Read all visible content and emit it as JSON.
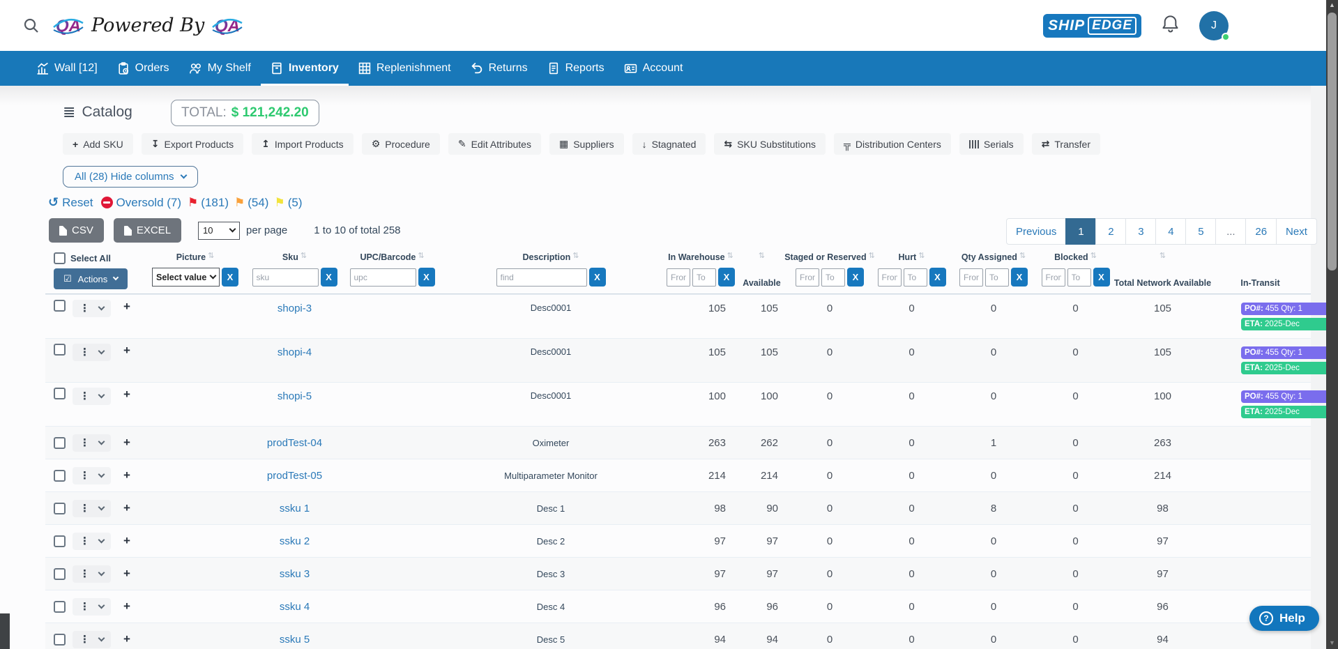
{
  "topbar": {
    "powered_by": "Powered By",
    "brand_ship": "SHIP",
    "brand_edge": "EDGE",
    "avatar_initial": "J"
  },
  "nav": {
    "items": [
      {
        "label": "Wall [12]",
        "active": false
      },
      {
        "label": "Orders",
        "active": false
      },
      {
        "label": "My Shelf",
        "active": false
      },
      {
        "label": "Inventory",
        "active": true
      },
      {
        "label": "Replenishment",
        "active": false
      },
      {
        "label": "Returns",
        "active": false
      },
      {
        "label": "Reports",
        "active": false
      },
      {
        "label": "Account",
        "active": false
      }
    ]
  },
  "catalog": {
    "title": "Catalog",
    "total_label": "TOTAL:",
    "total_value": "$ 121,242.20"
  },
  "action_buttons": [
    {
      "name": "add-sku-button",
      "label": "Add SKU",
      "icon": "+",
      "icon_name": "plus-icon"
    },
    {
      "name": "export-products-button",
      "label": "Export Products",
      "icon": "↧",
      "icon_name": "download-icon"
    },
    {
      "name": "import-products-button",
      "label": "Import Products",
      "icon": "↥",
      "icon_name": "upload-icon"
    },
    {
      "name": "procedure-button",
      "label": "Procedure",
      "icon": "⚙",
      "icon_name": "gear-icon"
    },
    {
      "name": "edit-attributes-button",
      "label": "Edit Attributes",
      "icon": "✎",
      "icon_name": "edit-icon"
    },
    {
      "name": "suppliers-button",
      "label": "Suppliers",
      "icon": "▦",
      "icon_name": "building-icon"
    },
    {
      "name": "stagnated-button",
      "label": "Stagnated",
      "icon": "↓",
      "icon_name": "arrow-down-icon"
    },
    {
      "name": "sku-substitutions-button",
      "label": "SKU Substitutions",
      "icon": "⇆",
      "icon_name": "substitute-icon"
    },
    {
      "name": "distribution-centers-button",
      "label": "Distribution Centers",
      "icon": "╦",
      "icon_name": "sitemap-icon"
    },
    {
      "name": "serials-button",
      "label": "Serials",
      "icon": "",
      "icon_name": "barcode-icon"
    },
    {
      "name": "transfer-button",
      "label": "Transfer",
      "icon": "⇄",
      "icon_name": "transfer-icon"
    }
  ],
  "columns_toggle": {
    "label": "All (28)  Hide columns"
  },
  "filter_bar": {
    "reset_label": "Reset",
    "oversold_label": "Oversold (7)",
    "flags": [
      {
        "name": "red-flag-filter",
        "color": "#e8212e",
        "count": "(181)"
      },
      {
        "name": "orange-flag-filter",
        "color": "#f9a13a",
        "count": "(54)"
      },
      {
        "name": "yellow-flag-filter",
        "color": "#f2e33b",
        "count": "(5)"
      }
    ]
  },
  "toolbar": {
    "csv_label": "CSV",
    "excel_label": "EXCEL",
    "per_page_value": "10",
    "per_page_label": "per page",
    "range_text": "1 to 10 of total 258"
  },
  "pagination": {
    "items": [
      "Previous",
      "1",
      "2",
      "3",
      "4",
      "5",
      "...",
      "26",
      "Next"
    ],
    "active_index": 1
  },
  "table": {
    "select_all_label": "Select All",
    "actions_label": "Actions",
    "headers": {
      "picture": "Picture",
      "sku": "Sku",
      "upc": "UPC/Barcode",
      "description": "Description",
      "in_warehouse": "In Warehouse",
      "available": "Available",
      "staged": "Staged or Reserved",
      "hurt": "Hurt",
      "qty_assigned": "Qty Assigned",
      "blocked": "Blocked",
      "total_network": "Total Network Available",
      "in_transit": "In-Transit"
    },
    "filters": {
      "picture_select": "Select value",
      "sku_placeholder": "sku",
      "upc_placeholder": "upc",
      "description_placeholder": "find",
      "from_placeholder": "From",
      "to_placeholder": "To",
      "clear_label": "X"
    },
    "rows": [
      {
        "sku": "shopi-3",
        "description": "Desc0001",
        "in_warehouse": "105",
        "available": "105",
        "staged": "0",
        "hurt": "0",
        "qty_assigned": "0",
        "blocked": "0",
        "total_network": "105",
        "in_transit": {
          "po_prefix": "PO#:",
          "po_text": "455 Qty: 1",
          "eta_prefix": "ETA:",
          "eta_text": "2025-Dec"
        }
      },
      {
        "sku": "shopi-4",
        "description": "Desc0001",
        "in_warehouse": "105",
        "available": "105",
        "staged": "0",
        "hurt": "0",
        "qty_assigned": "0",
        "blocked": "0",
        "total_network": "105",
        "in_transit": {
          "po_prefix": "PO#:",
          "po_text": "455 Qty: 1",
          "eta_prefix": "ETA:",
          "eta_text": "2025-Dec"
        }
      },
      {
        "sku": "shopi-5",
        "description": "Desc0001",
        "in_warehouse": "100",
        "available": "100",
        "staged": "0",
        "hurt": "0",
        "qty_assigned": "0",
        "blocked": "0",
        "total_network": "100",
        "in_transit": {
          "po_prefix": "PO#:",
          "po_text": "455 Qty: 1",
          "eta_prefix": "ETA:",
          "eta_text": "2025-Dec"
        }
      },
      {
        "sku": "prodTest-04",
        "description": "Oximeter",
        "in_warehouse": "263",
        "available": "262",
        "staged": "0",
        "hurt": "0",
        "qty_assigned": "1",
        "blocked": "0",
        "total_network": "263",
        "in_transit": null
      },
      {
        "sku": "prodTest-05",
        "description": "Multiparameter Monitor",
        "in_warehouse": "214",
        "available": "214",
        "staged": "0",
        "hurt": "0",
        "qty_assigned": "0",
        "blocked": "0",
        "total_network": "214",
        "in_transit": null
      },
      {
        "sku": "ssku 1",
        "description": "Desc 1",
        "in_warehouse": "98",
        "available": "90",
        "staged": "0",
        "hurt": "0",
        "qty_assigned": "8",
        "blocked": "0",
        "total_network": "98",
        "in_transit": null
      },
      {
        "sku": "ssku 2",
        "description": "Desc 2",
        "in_warehouse": "97",
        "available": "97",
        "staged": "0",
        "hurt": "0",
        "qty_assigned": "0",
        "blocked": "0",
        "total_network": "97",
        "in_transit": null
      },
      {
        "sku": "ssku 3",
        "description": "Desc 3",
        "in_warehouse": "97",
        "available": "97",
        "staged": "0",
        "hurt": "0",
        "qty_assigned": "0",
        "blocked": "0",
        "total_network": "97",
        "in_transit": null
      },
      {
        "sku": "ssku 4",
        "description": "Desc 4",
        "in_warehouse": "96",
        "available": "96",
        "staged": "0",
        "hurt": "0",
        "qty_assigned": "0",
        "blocked": "0",
        "total_network": "96",
        "in_transit": null
      },
      {
        "sku": "ssku 5",
        "description": "Desc 5",
        "in_warehouse": "94",
        "available": "94",
        "staged": "0",
        "hurt": "0",
        "qty_assigned": "0",
        "blocked": "0",
        "total_network": "94",
        "in_transit": null
      }
    ]
  },
  "help": {
    "label": "Help",
    "icon": "?"
  },
  "glyphs": {
    "catalog": "≣",
    "reset": "↺",
    "flag": "⚑",
    "sort": "⇅",
    "kebab": "⋮",
    "plus": "+",
    "actions_check": "☑",
    "scroll_up": "▲",
    "scroll_down": "▼"
  },
  "colors": {
    "nav_blue": "#1878b9",
    "brand_blue": "#1778be",
    "total_green": "#2dc96f",
    "badge_purple": "#7a6ded",
    "badge_green": "#2fcb8e",
    "pagination_active": "#336a92",
    "oversold_red": "#e01737"
  }
}
